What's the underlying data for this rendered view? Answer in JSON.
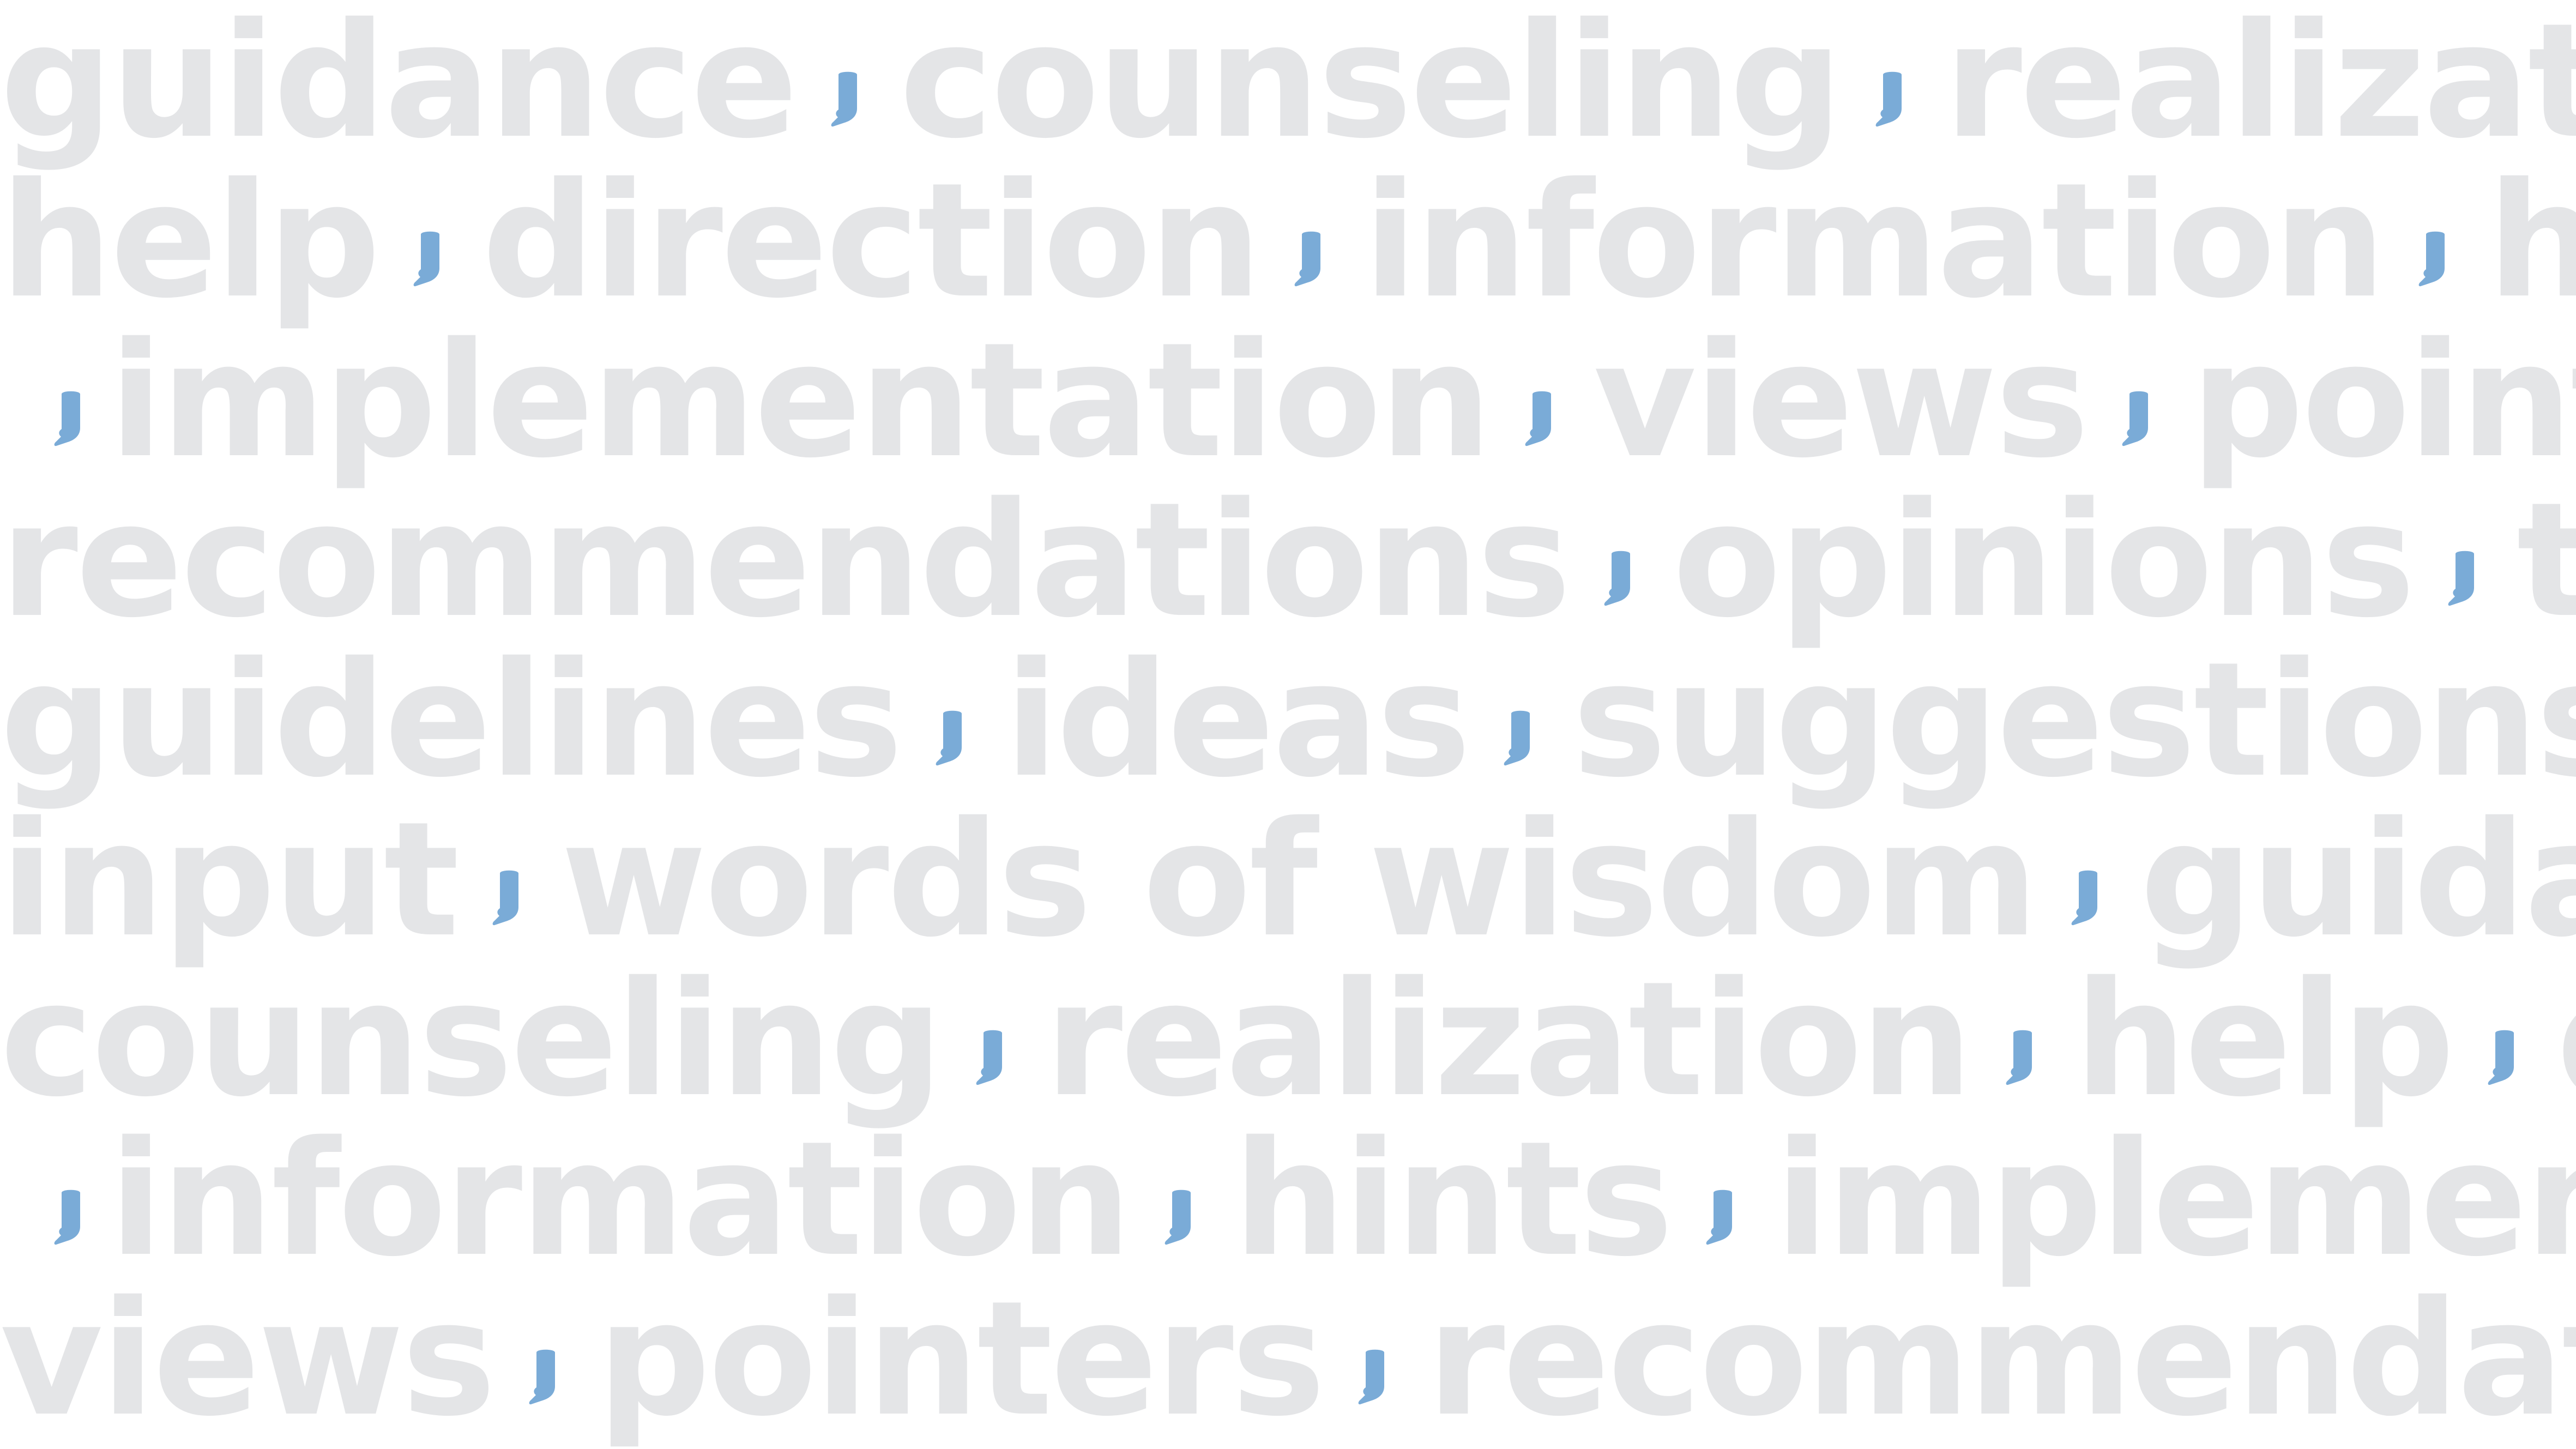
{
  "accent_color": "#7aabd7",
  "text_color": "#e4e5e7",
  "background_color": "#ffffff",
  "separator_icon": "comma-speech-bubble-icon",
  "lines": [
    {
      "lead_sep": false,
      "words": [
        "guidance",
        "counseling",
        "realization"
      ],
      "trail_sep": false
    },
    {
      "lead_sep": false,
      "words": [
        "help",
        "direction",
        "information",
        "hints"
      ],
      "trail_sep": false
    },
    {
      "lead_sep": true,
      "words": [
        "implementation",
        "views",
        "pointers"
      ],
      "trail_sep": false
    },
    {
      "lead_sep": false,
      "words": [
        "recommendations",
        "opinions",
        "tips"
      ],
      "trail_sep": false
    },
    {
      "lead_sep": false,
      "words": [
        "guidelines",
        "ideas",
        "suggestions"
      ],
      "trail_sep": true
    },
    {
      "lead_sep": false,
      "words": [
        "input",
        "words of wisdom",
        "guidance"
      ],
      "trail_sep": false
    },
    {
      "lead_sep": false,
      "words": [
        "counseling",
        "realization",
        "help",
        "direction"
      ],
      "trail_sep": false
    },
    {
      "lead_sep": true,
      "words": [
        "information",
        "hints",
        "implementation"
      ],
      "trail_sep": false
    },
    {
      "lead_sep": false,
      "words": [
        "views",
        "pointers",
        "recommendations"
      ],
      "trail_sep": false
    }
  ]
}
